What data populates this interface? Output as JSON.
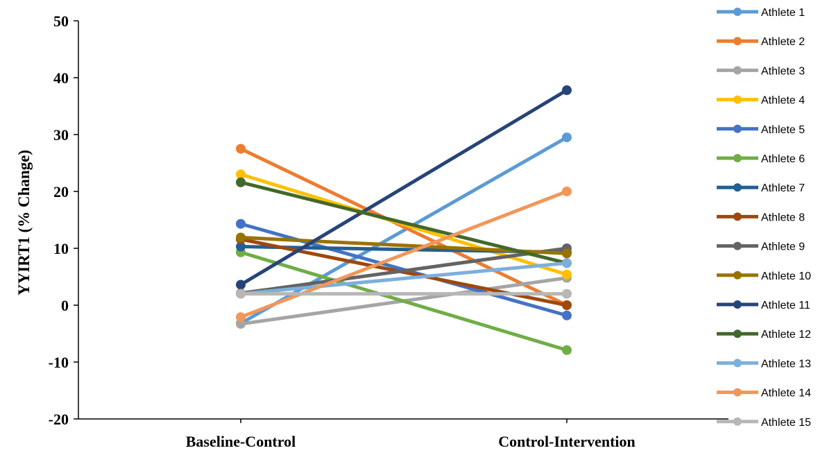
{
  "chart_data": {
    "type": "line",
    "categories": [
      "Baseline-Control",
      "Control-Intervention"
    ],
    "ylabel": "YYIRT1 (% Change)",
    "xlabel": "",
    "ylim": [
      -20,
      50
    ],
    "yticks": [
      -20,
      -10,
      0,
      10,
      20,
      30,
      40,
      50
    ],
    "grid": false,
    "legend_position": "right",
    "series": [
      {
        "name": "Athlete 1",
        "color": "#5B9BD5",
        "values": [
          -3.2,
          29.5
        ]
      },
      {
        "name": "Athlete 2",
        "color": "#ED7D31",
        "values": [
          27.5,
          0.0
        ]
      },
      {
        "name": "Athlete 3",
        "color": "#A5A5A5",
        "values": [
          -3.3,
          4.8
        ]
      },
      {
        "name": "Athlete 4",
        "color": "#FFC000",
        "values": [
          23.0,
          5.4
        ]
      },
      {
        "name": "Athlete 5",
        "color": "#4472C4",
        "values": [
          14.3,
          -1.8
        ]
      },
      {
        "name": "Athlete 6",
        "color": "#70AD47",
        "values": [
          9.3,
          -7.9
        ]
      },
      {
        "name": "Athlete 7",
        "color": "#255E91",
        "values": [
          10.3,
          9.3
        ]
      },
      {
        "name": "Athlete 8",
        "color": "#9E480E",
        "values": [
          11.6,
          0.0
        ]
      },
      {
        "name": "Athlete 9",
        "color": "#636363",
        "values": [
          2.1,
          10.0
        ]
      },
      {
        "name": "Athlete 10",
        "color": "#997300",
        "values": [
          11.9,
          9.1
        ]
      },
      {
        "name": "Athlete 11",
        "color": "#264478",
        "values": [
          3.6,
          37.8
        ]
      },
      {
        "name": "Athlete 12",
        "color": "#43682B",
        "values": [
          21.6,
          7.4
        ]
      },
      {
        "name": "Athlete 13",
        "color": "#7CAFDD",
        "values": [
          2.0,
          7.4
        ]
      },
      {
        "name": "Athlete 14",
        "color": "#F1975A",
        "values": [
          -2.1,
          20.0
        ]
      },
      {
        "name": "Athlete 15",
        "color": "#B7B7B7",
        "values": [
          2.0,
          2.0
        ]
      }
    ]
  }
}
